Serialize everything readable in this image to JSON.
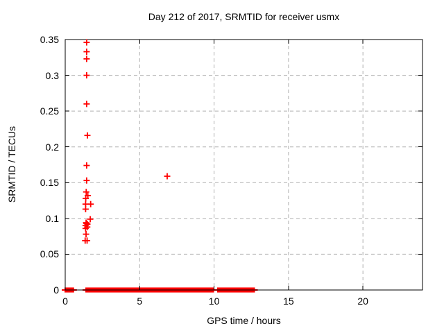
{
  "title": "Day 212 of 2017, SRMTID for receiver usmx",
  "chart_data": {
    "type": "scatter",
    "title": "Day 212 of 2017, SRMTID for receiver usmx",
    "xlabel": "GPS time / hours",
    "ylabel": "SRMTID / TECUs",
    "xlim": [
      0,
      24
    ],
    "ylim": [
      0,
      0.35
    ],
    "xticks": [
      0,
      5,
      10,
      15,
      20
    ],
    "xtick_labels": [
      "0",
      "5",
      "10",
      "15",
      "20"
    ],
    "yticks": [
      0,
      0.05,
      0.1,
      0.15,
      0.2,
      0.25,
      0.3,
      0.35
    ],
    "ytick_labels": [
      "0",
      "0.05",
      "0.1",
      "0.15",
      "0.2",
      "0.25",
      "0.3",
      "0.35"
    ],
    "grid": true,
    "legend": "none",
    "marker": "plus",
    "marker_color": "#ff0000",
    "grid_color": "#b0b0b0",
    "border_color": "#000000",
    "points": [
      [
        1.44,
        0.346
      ],
      [
        1.44,
        0.333
      ],
      [
        1.44,
        0.323
      ],
      [
        1.44,
        0.3
      ],
      [
        1.44,
        0.26
      ],
      [
        1.49,
        0.216
      ],
      [
        1.44,
        0.174
      ],
      [
        1.44,
        0.153
      ],
      [
        1.41,
        0.137
      ],
      [
        1.52,
        0.132
      ],
      [
        1.38,
        0.128
      ],
      [
        1.37,
        0.12
      ],
      [
        1.71,
        0.12
      ],
      [
        1.37,
        0.113
      ],
      [
        1.68,
        0.099
      ],
      [
        1.4,
        0.094
      ],
      [
        1.43,
        0.093
      ],
      [
        1.49,
        0.092
      ],
      [
        1.37,
        0.09
      ],
      [
        1.48,
        0.088
      ],
      [
        1.37,
        0.086
      ],
      [
        1.4,
        0.078
      ],
      [
        1.34,
        0.069
      ],
      [
        1.47,
        0.069
      ],
      [
        6.85,
        0.159
      ]
    ],
    "zero_band_segments": [
      [
        0.0,
        0.55
      ],
      [
        1.4,
        9.95
      ],
      [
        10.25,
        12.7
      ]
    ]
  }
}
